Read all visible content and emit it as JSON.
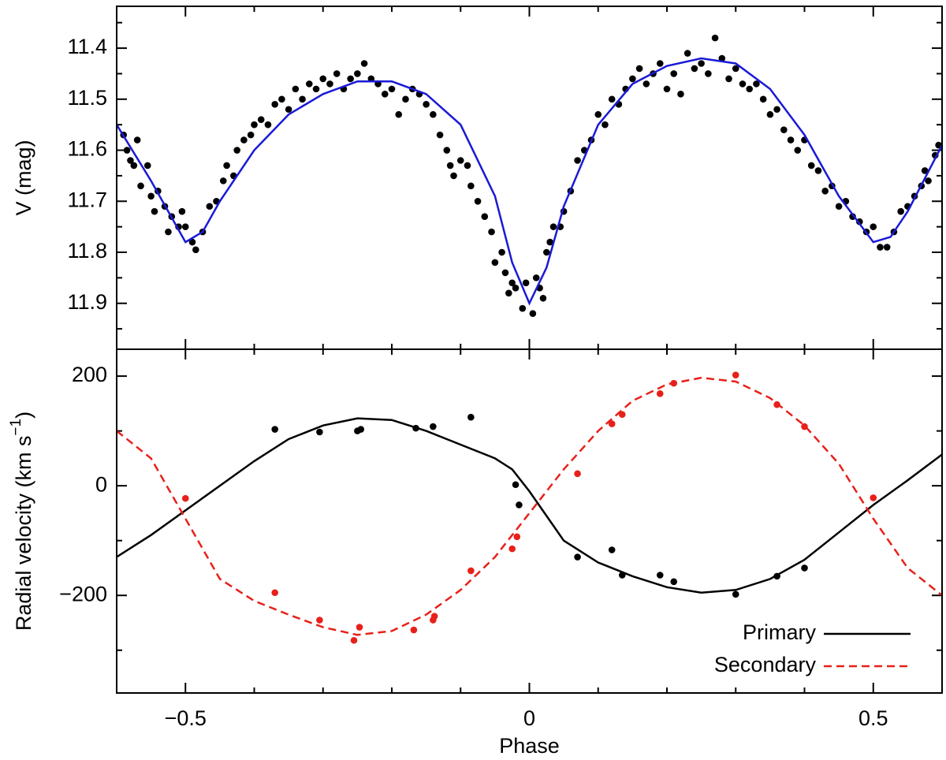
{
  "chart_data": [
    {
      "type": "scatter",
      "y_label": "V (mag)",
      "xlim": [
        -0.6,
        0.6
      ],
      "xticks": [
        -0.5,
        0,
        0.5
      ],
      "show_xtick_labels": false,
      "xticks_minor": [
        -0.4,
        -0.3,
        -0.2,
        -0.1,
        0.1,
        0.2,
        0.3,
        0.4
      ],
      "ylim": [
        11.99,
        11.318
      ],
      "yticks": [
        11.4,
        11.5,
        11.6,
        11.7,
        11.8,
        11.9
      ],
      "yticks_minor": [
        11.35,
        11.45,
        11.55,
        11.65,
        11.75,
        11.85,
        11.95
      ],
      "series": [
        {
          "style": "points",
          "color": "#000000",
          "x": [
            -0.59,
            -0.585,
            -0.58,
            -0.575,
            -0.57,
            -0.565,
            -0.555,
            -0.55,
            -0.545,
            -0.54,
            -0.53,
            -0.525,
            -0.52,
            -0.51,
            -0.505,
            -0.5,
            -0.49,
            -0.485,
            -0.475,
            -0.465,
            -0.455,
            -0.445,
            -0.44,
            -0.43,
            -0.425,
            -0.415,
            -0.405,
            -0.4,
            -0.39,
            -0.38,
            -0.37,
            -0.36,
            -0.35,
            -0.34,
            -0.33,
            -0.32,
            -0.31,
            -0.3,
            -0.29,
            -0.28,
            -0.27,
            -0.26,
            -0.25,
            -0.24,
            -0.23,
            -0.22,
            -0.21,
            -0.2,
            -0.19,
            -0.18,
            -0.17,
            -0.16,
            -0.15,
            -0.14,
            -0.13,
            -0.12,
            -0.115,
            -0.11,
            -0.1,
            -0.09,
            -0.085,
            -0.075,
            -0.065,
            -0.055,
            -0.05,
            -0.04,
            -0.035,
            -0.03,
            -0.025,
            -0.02,
            -0.01,
            -0.005,
            0.005,
            0.01,
            0.015,
            0.02,
            0.025,
            0.03,
            0.035,
            0.045,
            0.05,
            0.06,
            0.07,
            0.08,
            0.09,
            0.1,
            0.11,
            0.12,
            0.13,
            0.14,
            0.15,
            0.16,
            0.17,
            0.18,
            0.19,
            0.2,
            0.21,
            0.22,
            0.23,
            0.24,
            0.25,
            0.26,
            0.27,
            0.28,
            0.29,
            0.3,
            0.31,
            0.32,
            0.33,
            0.34,
            0.35,
            0.36,
            0.37,
            0.38,
            0.39,
            0.4,
            0.41,
            0.42,
            0.43,
            0.44,
            0.45,
            0.46,
            0.47,
            0.48,
            0.49,
            0.5,
            0.51,
            0.52,
            0.53,
            0.54,
            0.55,
            0.56,
            0.57,
            0.575,
            0.58,
            0.59,
            0.595
          ],
          "values": [
            11.57,
            11.6,
            11.62,
            11.63,
            11.58,
            11.67,
            11.63,
            11.69,
            11.72,
            11.68,
            11.71,
            11.76,
            11.73,
            11.75,
            11.72,
            11.75,
            11.78,
            11.795,
            11.76,
            11.71,
            11.7,
            11.66,
            11.63,
            11.65,
            11.6,
            11.58,
            11.57,
            11.55,
            11.54,
            11.55,
            11.51,
            11.5,
            11.52,
            11.48,
            11.5,
            11.47,
            11.48,
            11.46,
            11.47,
            11.45,
            11.48,
            11.46,
            11.45,
            11.43,
            11.46,
            11.47,
            11.49,
            11.48,
            11.53,
            11.5,
            11.48,
            11.49,
            11.51,
            11.53,
            11.57,
            11.6,
            11.63,
            11.65,
            11.62,
            11.63,
            11.67,
            11.7,
            11.73,
            11.76,
            11.82,
            11.8,
            11.84,
            11.88,
            11.86,
            11.87,
            11.91,
            11.86,
            11.92,
            11.85,
            11.87,
            11.89,
            11.8,
            11.78,
            11.75,
            11.75,
            11.72,
            11.68,
            11.62,
            11.6,
            11.58,
            11.53,
            11.55,
            11.5,
            11.51,
            11.48,
            11.46,
            11.44,
            11.47,
            11.45,
            11.43,
            11.48,
            11.45,
            11.49,
            11.41,
            11.44,
            11.43,
            11.45,
            11.38,
            11.42,
            11.46,
            11.44,
            11.47,
            11.48,
            11.47,
            11.5,
            11.53,
            11.52,
            11.56,
            11.58,
            11.6,
            11.58,
            11.63,
            11.64,
            11.68,
            11.67,
            11.71,
            11.7,
            11.73,
            11.74,
            11.76,
            11.75,
            11.79,
            11.79,
            11.76,
            11.72,
            11.71,
            11.69,
            11.67,
            11.64,
            11.66,
            11.61,
            11.59
          ]
        },
        {
          "style": "line",
          "color": "#1a1ad6",
          "x": [
            -0.6,
            -0.55,
            -0.5,
            -0.475,
            -0.45,
            -0.4,
            -0.35,
            -0.3,
            -0.25,
            -0.2,
            -0.15,
            -0.1,
            -0.05,
            -0.025,
            0,
            0.025,
            0.05,
            0.1,
            0.15,
            0.2,
            0.25,
            0.3,
            0.35,
            0.4,
            0.45,
            0.5,
            0.525,
            0.55,
            0.6
          ],
          "values": [
            11.55,
            11.66,
            11.78,
            11.76,
            11.7,
            11.6,
            11.53,
            11.49,
            11.465,
            11.465,
            11.49,
            11.55,
            11.69,
            11.82,
            11.9,
            11.83,
            11.71,
            11.55,
            11.47,
            11.435,
            11.42,
            11.43,
            11.48,
            11.57,
            11.69,
            11.78,
            11.77,
            11.72,
            11.59
          ]
        }
      ]
    },
    {
      "type": "scatter",
      "x_label": "Phase",
      "y_label_parts": [
        "Radial velocity (km s",
        "−1",
        ")"
      ],
      "xlim": [
        -0.6,
        0.6
      ],
      "xticks": [
        {
          "value": -0.5,
          "label": "−0.5"
        },
        0,
        0.5
      ],
      "show_xtick_labels": true,
      "xticks_minor": [
        -0.4,
        -0.3,
        -0.2,
        -0.1,
        0.1,
        0.2,
        0.3,
        0.4
      ],
      "ylim": [
        -378,
        249
      ],
      "yticks": [
        {
          "value": -200,
          "label": "−200"
        },
        0,
        200
      ],
      "yticks_minor": [
        -300,
        -100,
        100
      ],
      "legend": "lower right",
      "series": [
        {
          "style": "points",
          "color": "#000000",
          "x": [
            -0.37,
            -0.305,
            -0.25,
            -0.245,
            -0.165,
            -0.14,
            -0.085,
            -0.02,
            -0.015,
            0.07,
            0.12,
            0.135,
            0.19,
            0.21,
            0.3,
            0.36,
            0.4
          ],
          "values": [
            103,
            98,
            100,
            103,
            105,
            108,
            125,
            2,
            -35,
            -130,
            -117,
            -163,
            -163,
            -175,
            -198,
            -165,
            -150
          ]
        },
        {
          "style": "points",
          "color": "#e8201a",
          "x": [
            -0.5,
            -0.37,
            -0.305,
            -0.255,
            -0.247,
            -0.168,
            -0.14,
            -0.138,
            -0.085,
            -0.025,
            -0.018,
            0.07,
            0.12,
            0.135,
            0.19,
            0.21,
            0.3,
            0.36,
            0.4,
            0.5
          ],
          "values": [
            -23,
            -195,
            -245,
            -282,
            -258,
            -263,
            -245,
            -238,
            -155,
            -115,
            -93,
            22,
            113,
            130,
            168,
            187,
            202,
            148,
            108,
            -22
          ]
        },
        {
          "name": "Primary",
          "style": "line",
          "color": "#000000",
          "x": [
            -0.6,
            -0.55,
            -0.5,
            -0.45,
            -0.4,
            -0.35,
            -0.3,
            -0.25,
            -0.2,
            -0.15,
            -0.1,
            -0.05,
            -0.025,
            0,
            0.025,
            0.05,
            0.1,
            0.15,
            0.2,
            0.25,
            0.3,
            0.35,
            0.4,
            0.45,
            0.5,
            0.55,
            0.6
          ],
          "values": [
            -130,
            -90,
            -45,
            0,
            45,
            85,
            110,
            123,
            120,
            100,
            75,
            50,
            30,
            -10,
            -55,
            -100,
            -140,
            -165,
            -185,
            -195,
            -190,
            -170,
            -135,
            -85,
            -35,
            10,
            57
          ]
        },
        {
          "name": "Secondary",
          "style": "dashed",
          "color": "#e8201a",
          "x": [
            -0.6,
            -0.55,
            -0.5,
            -0.45,
            -0.4,
            -0.35,
            -0.3,
            -0.25,
            -0.2,
            -0.15,
            -0.1,
            -0.05,
            0,
            0.05,
            0.1,
            0.15,
            0.2,
            0.25,
            0.3,
            0.35,
            0.4,
            0.45,
            0.5,
            0.55,
            0.6
          ],
          "values": [
            100,
            50,
            -60,
            -170,
            -210,
            -235,
            -258,
            -272,
            -265,
            -235,
            -190,
            -130,
            -50,
            30,
            100,
            155,
            185,
            197,
            190,
            160,
            110,
            40,
            -60,
            -150,
            -200
          ]
        }
      ]
    }
  ]
}
